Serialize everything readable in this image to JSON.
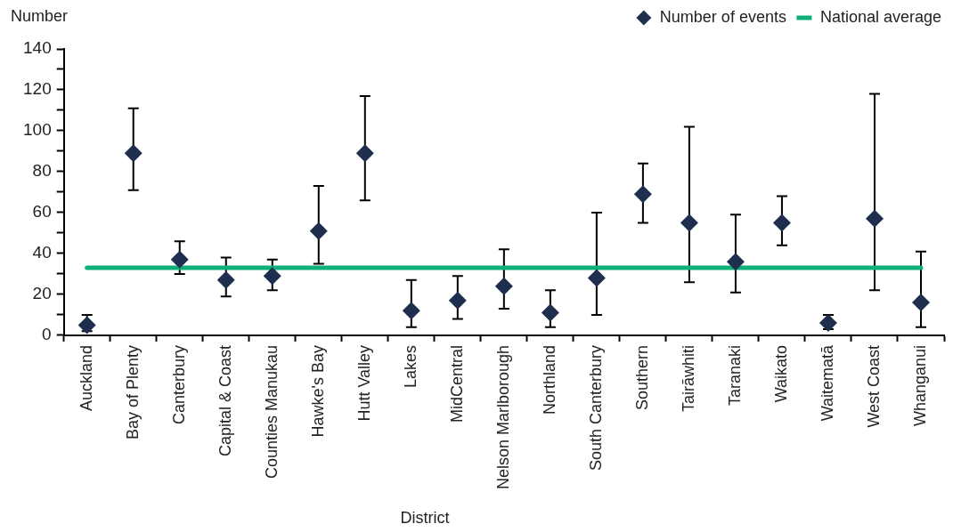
{
  "chart_data": {
    "type": "scatter",
    "xlabel": "District",
    "ylabel": "Number",
    "categories": [
      "Auckland",
      "Bay of Plenty",
      "Canterbury",
      "Capital & Coast",
      "Counties Manukau",
      "Hawke's Bay",
      "Hutt Valley",
      "Lakes",
      "MidCentral",
      "Nelson Marlborough",
      "Northland",
      "South Canterbury",
      "Southern",
      "Tairāwhiti",
      "Taranaki",
      "Waikato",
      "Waitematā",
      "West Coast",
      "Whanganui"
    ],
    "series": [
      {
        "name": "Number of events",
        "marker": "diamond",
        "color": "#1f2d4f",
        "values": [
          5,
          89,
          37,
          27,
          29,
          51,
          89,
          12,
          17,
          24,
          11,
          28,
          69,
          55,
          36,
          55,
          6,
          57,
          16
        ],
        "errors": [
          [
            2,
            10
          ],
          [
            71,
            111
          ],
          [
            30,
            46
          ],
          [
            19,
            38
          ],
          [
            22,
            37
          ],
          [
            35,
            73
          ],
          [
            66,
            117
          ],
          [
            4,
            27
          ],
          [
            8,
            29
          ],
          [
            13,
            42
          ],
          [
            4,
            22
          ],
          [
            10,
            60
          ],
          [
            55,
            84
          ],
          [
            26,
            102
          ],
          [
            21,
            59
          ],
          [
            44,
            68
          ],
          [
            3,
            10
          ],
          [
            22,
            118
          ],
          [
            4,
            41
          ]
        ]
      },
      {
        "name": "National average",
        "type": "line",
        "marker": "none",
        "color": "#10ae78",
        "values": [
          33,
          33,
          33,
          33,
          33,
          33,
          33,
          33,
          33,
          33,
          33,
          33,
          33,
          33,
          33,
          33,
          33,
          33,
          33
        ]
      }
    ],
    "ylim": [
      0,
      140
    ],
    "yticks": [
      0,
      {
        "value": 10,
        "label": null
      },
      20,
      {
        "value": 30,
        "label": null
      },
      40,
      {
        "value": 50,
        "label": null
      },
      60,
      {
        "value": 70,
        "label": null
      },
      80,
      {
        "value": 90,
        "label": null
      },
      100,
      {
        "value": 110,
        "label": null
      },
      120,
      {
        "value": 130,
        "label": null
      },
      140
    ],
    "legend": "top right"
  }
}
